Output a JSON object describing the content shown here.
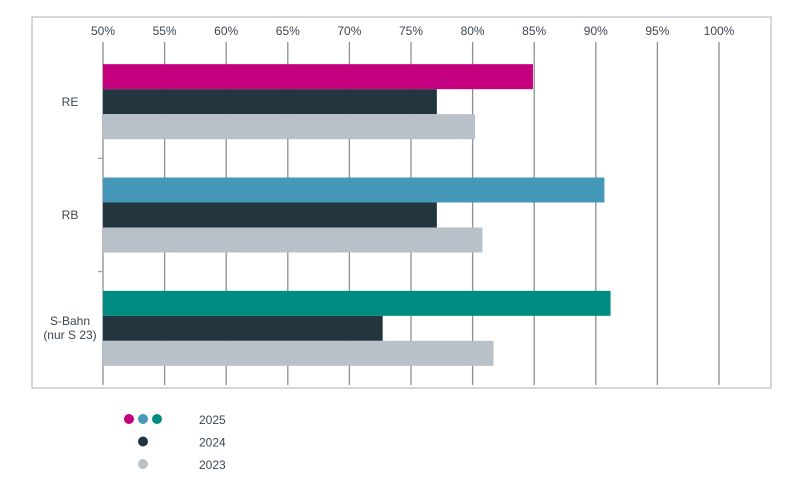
{
  "chart_data": {
    "type": "bar",
    "orientation": "horizontal",
    "categories": [
      "RE",
      "RB",
      "S-Bahn (nur S 23)"
    ],
    "series": [
      {
        "name": "2025",
        "colors": [
          "#c4007f",
          "#4598b9",
          "#008c81"
        ],
        "values": [
          84.9,
          90.7,
          91.2
        ]
      },
      {
        "name": "2024",
        "color": "#233640",
        "values": [
          77.1,
          77.1,
          72.7
        ]
      },
      {
        "name": "2023",
        "color": "#b9c1c8",
        "values": [
          80.2,
          80.8,
          81.7
        ]
      }
    ],
    "xlim": [
      50,
      100
    ],
    "xticks": [
      {
        "value": 50,
        "label": "50%"
      },
      {
        "value": 55,
        "label": "55%"
      },
      {
        "value": 60,
        "label": "60%"
      },
      {
        "value": 65,
        "label": "65%"
      },
      {
        "value": 70,
        "label": "70%"
      },
      {
        "value": 75,
        "label": "75%"
      },
      {
        "value": 80,
        "label": "80%"
      },
      {
        "value": 85,
        "label": "85%"
      },
      {
        "value": 90,
        "label": "90%"
      },
      {
        "value": 95,
        "label": "95%"
      },
      {
        "value": 100,
        "label": "100%"
      }
    ],
    "grid": true
  }
}
